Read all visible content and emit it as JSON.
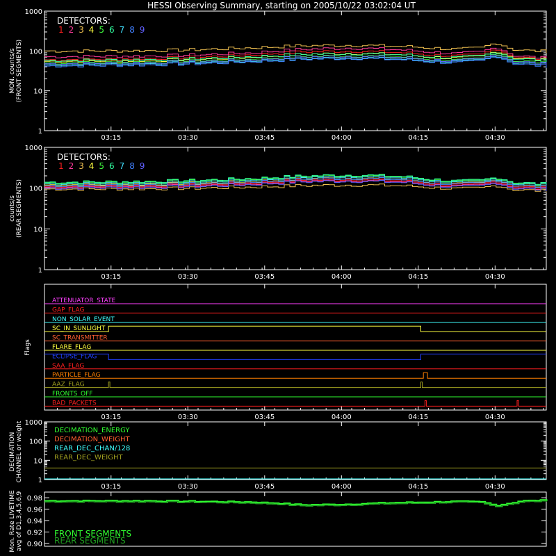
{
  "title": "HESSI Observing Summary, starting on 2005/10/22 03:02:04 UT",
  "x_ticks": [
    "03:15",
    "03:30",
    "03:45",
    "04:00",
    "04:15",
    "04:30"
  ],
  "x_tick_minutes": [
    13,
    28,
    43,
    58,
    73,
    88
  ],
  "x_range_minutes": [
    0,
    98
  ],
  "detector_colors": [
    "#ff2020",
    "#ff3a9a",
    "#f0c050",
    "#ffff40",
    "#40ff40",
    "#30ffa0",
    "#40e0ff",
    "#4080ff",
    "#6060ff"
  ],
  "panels": {
    "front": {
      "ylabel": [
        "MON. counts/s",
        "(FRONT SEGMENTS)"
      ],
      "y_ticks": [
        "1000",
        "100",
        "10",
        "1"
      ],
      "legend_title": "DETECTORS:",
      "legend_numbers": [
        "1",
        "2",
        "3",
        "4",
        "5",
        "6",
        "7",
        "8",
        "9"
      ]
    },
    "rear": {
      "ylabel": [
        "counts/s",
        "(REAR SEGMENTS)"
      ],
      "y_ticks": [
        "1000",
        "100",
        "10",
        "1"
      ],
      "legend_title": "DETECTORS:",
      "legend_numbers": [
        "1",
        "2",
        "3",
        "4",
        "5",
        "6",
        "7",
        "8",
        "9"
      ]
    },
    "flags": {
      "ylabel": "Flags",
      "items": [
        {
          "label": "ATTENUATOR_STATE",
          "color": "#ff40ff"
        },
        {
          "label": "GAP_FLAG",
          "color": "#ff2020"
        },
        {
          "label": "NON_SOLAR_EVENT",
          "color": "#40ffff"
        },
        {
          "label": "SC_IN_SUNLIGHT",
          "color": "#ffff40"
        },
        {
          "label": "SC_TRANSMITTER",
          "color": "#ff6030"
        },
        {
          "label": "FLARE_FLAG",
          "color": "#ffff40"
        },
        {
          "label": "ECLIPSE_FLAG",
          "color": "#2040ff"
        },
        {
          "label": "SAA_FLAG",
          "color": "#ff2020"
        },
        {
          "label": "PARTICLE_FLAG",
          "color": "#ff8000"
        },
        {
          "label": "AAZ_FLAG",
          "color": "#a0a020"
        },
        {
          "label": "FRONTS_OFF",
          "color": "#30ff30"
        },
        {
          "label": "BAD_PACKETS",
          "color": "#ff2020"
        }
      ]
    },
    "decimation": {
      "ylabel": [
        "DECIMATION",
        "CHANNEL or weight"
      ],
      "y_ticks": [
        "1000",
        "100",
        "10",
        "1"
      ],
      "legend": [
        {
          "label": "DECIMATION_ENERGY",
          "color": "#30ff30"
        },
        {
          "label": "DECIMATION_WEIGHT",
          "color": "#ff6030"
        },
        {
          "label": "REAR_DEC_CHAN/128",
          "color": "#40ffff"
        },
        {
          "label": "REAR_DEC_WEIGHT",
          "color": "#a0a020"
        }
      ]
    },
    "livetime": {
      "ylabel": [
        "Mon. Rate LIVETIME",
        "avg of D1,3,4,5,6,9"
      ],
      "y_ticks": [
        "0.98",
        "0.96",
        "0.94",
        "0.92",
        "0.90"
      ],
      "y_range": [
        0.895,
        0.99
      ],
      "legend": [
        {
          "label": "FRONT SEGMENTS",
          "color": "#30ff30"
        },
        {
          "label": "REAR SEGMENTS",
          "color": "#20a020"
        }
      ]
    }
  },
  "chart_data": [
    {
      "type": "line",
      "name": "front",
      "y_scale": "log",
      "ylim": [
        1,
        1000
      ],
      "x_minutes": [
        0,
        10,
        20,
        30,
        40,
        50,
        60,
        70,
        75,
        80,
        85,
        88,
        91,
        95,
        98
      ],
      "series": [
        {
          "name": "1",
          "values": [
            60,
            62,
            65,
            70,
            80,
            95,
            100,
            90,
            80,
            75,
            80,
            115,
            72,
            65,
            60
          ]
        },
        {
          "name": "2",
          "values": [
            72,
            73,
            75,
            80,
            90,
            110,
            120,
            105,
            95,
            85,
            95,
            125,
            78,
            70,
            66
          ]
        },
        {
          "name": "3",
          "values": [
            100,
            100,
            102,
            108,
            120,
            135,
            140,
            130,
            120,
            110,
            120,
            160,
            110,
            100,
            98
          ]
        },
        {
          "name": "4",
          "values": [
            55,
            56,
            58,
            62,
            70,
            82,
            88,
            80,
            70,
            66,
            72,
            100,
            68,
            62,
            58
          ]
        },
        {
          "name": "5",
          "values": [
            50,
            51,
            53,
            56,
            62,
            72,
            76,
            70,
            62,
            58,
            64,
            88,
            58,
            53,
            50
          ]
        },
        {
          "name": "6",
          "values": [
            58,
            59,
            61,
            64,
            72,
            82,
            86,
            80,
            72,
            68,
            74,
            95,
            66,
            60,
            57
          ]
        },
        {
          "name": "7",
          "values": [
            45,
            46,
            48,
            51,
            56,
            64,
            68,
            62,
            56,
            53,
            58,
            78,
            52,
            47,
            45
          ]
        },
        {
          "name": "8",
          "values": [
            42,
            43,
            45,
            48,
            54,
            62,
            66,
            60,
            54,
            50,
            56,
            75,
            49,
            44,
            41
          ]
        },
        {
          "name": "9",
          "values": [
            48,
            49,
            51,
            54,
            60,
            70,
            74,
            68,
            60,
            56,
            62,
            85,
            56,
            50,
            47
          ]
        }
      ]
    },
    {
      "type": "line",
      "name": "rear",
      "y_scale": "log",
      "ylim": [
        1,
        1000
      ],
      "x_minutes": [
        0,
        10,
        20,
        30,
        40,
        50,
        60,
        70,
        75,
        80,
        85,
        88,
        91,
        95,
        98
      ],
      "series": [
        {
          "name": "1",
          "values": [
            110,
            112,
            116,
            122,
            135,
            155,
            165,
            150,
            130,
            118,
            125,
            150,
            112,
            104,
            100
          ]
        },
        {
          "name": "2",
          "values": [
            105,
            107,
            110,
            116,
            128,
            148,
            155,
            142,
            122,
            110,
            118,
            140,
            105,
            98,
            95
          ]
        },
        {
          "name": "3",
          "values": [
            95,
            95,
            97,
            100,
            106,
            115,
            120,
            114,
            104,
            96,
            100,
            118,
            92,
            88,
            86
          ]
        },
        {
          "name": "4",
          "values": [
            120,
            122,
            126,
            132,
            145,
            168,
            178,
            162,
            140,
            126,
            134,
            160,
            120,
            112,
            108
          ]
        },
        {
          "name": "5",
          "values": [
            135,
            137,
            142,
            150,
            166,
            192,
            205,
            186,
            160,
            142,
            150,
            180,
            136,
            126,
            122
          ]
        },
        {
          "name": "6",
          "values": [
            140,
            142,
            147,
            156,
            172,
            198,
            212,
            192,
            166,
            148,
            156,
            185,
            140,
            130,
            126
          ]
        },
        {
          "name": "7",
          "values": [
            128,
            130,
            134,
            142,
            157,
            182,
            195,
            176,
            152,
            135,
            143,
            172,
            130,
            120,
            116
          ]
        },
        {
          "name": "8",
          "values": [
            115,
            117,
            121,
            128,
            142,
            165,
            176,
            160,
            138,
            124,
            130,
            158,
            118,
            110,
            106
          ]
        },
        {
          "name": "9",
          "values": [
            100,
            102,
            105,
            110,
            122,
            142,
            150,
            137,
            118,
            106,
            112,
            135,
            100,
            94,
            92
          ]
        }
      ]
    },
    {
      "type": "line",
      "name": "flags",
      "flag_steps": [
        {
          "flag": "SC_IN_SUNLIGHT",
          "on_from_minute": 12.5,
          "on_to_minute": 73.5
        },
        {
          "flag": "ECLIPSE_FLAG",
          "on_before_minute": 12.5,
          "on_after_minute": 73.5
        },
        {
          "flag": "PARTICLE_FLAG",
          "on_from_minute": 74,
          "on_to_minute": 74.8
        },
        {
          "flag": "AAZ_FLAG",
          "spikes_at_minutes": [
            12.5,
            73.5
          ]
        },
        {
          "flag": "BAD_PACKETS",
          "spikes_at_minutes": [
            74.3,
            92.3
          ]
        }
      ]
    },
    {
      "type": "line",
      "name": "decimation",
      "y_scale": "log",
      "ylim": [
        1,
        1000
      ],
      "series": [
        {
          "name": "DECIMATION_ENERGY",
          "values": [
            1,
            1
          ]
        },
        {
          "name": "DECIMATION_WEIGHT",
          "values": [
            1,
            1
          ]
        },
        {
          "name": "REAR_DEC_CHAN/128",
          "values": [
            1,
            1
          ]
        },
        {
          "name": "REAR_DEC_WEIGHT",
          "values": [
            4,
            4
          ]
        }
      ]
    },
    {
      "type": "line",
      "name": "livetime",
      "ylim": [
        0.895,
        0.99
      ],
      "x_minutes": [
        0,
        10,
        20,
        30,
        40,
        45,
        50,
        58,
        65,
        70,
        75,
        80,
        85,
        88,
        90,
        93,
        98
      ],
      "series": [
        {
          "name": "FRONT SEGMENTS",
          "values": [
            0.974,
            0.974,
            0.974,
            0.973,
            0.972,
            0.97,
            0.967,
            0.968,
            0.97,
            0.971,
            0.972,
            0.973,
            0.972,
            0.966,
            0.969,
            0.974,
            0.975
          ]
        },
        {
          "name": "REAR SEGMENTS",
          "values": [
            0.973,
            0.973,
            0.973,
            0.972,
            0.971,
            0.969,
            0.966,
            0.967,
            0.969,
            0.97,
            0.971,
            0.972,
            0.971,
            0.965,
            0.968,
            0.973,
            0.974
          ]
        }
      ]
    }
  ]
}
